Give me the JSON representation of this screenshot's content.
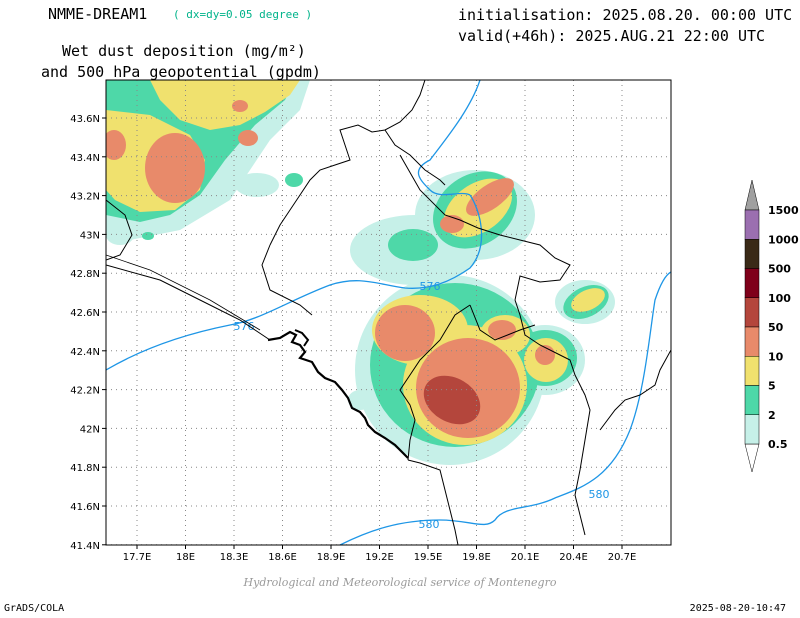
{
  "header": {
    "model": "NMME-DREAM1",
    "resolution": "( dx=dy=0.05 degree )",
    "product_line1": "Wet dust deposition (mg/m²)",
    "product_line2": "and 500 hPa geopotential (gpdm)",
    "init": "initialisation: 2025.08.20. 00:00 UTC",
    "valid": "valid(+46h): 2025.AUG.21 22:00 UTC"
  },
  "map": {
    "lon_labels": [
      "17.7E",
      "18E",
      "18.3E",
      "18.6E",
      "18.9E",
      "19.2E",
      "19.5E",
      "19.8E",
      "20.1E",
      "20.4E",
      "20.7E"
    ],
    "lat_labels": [
      "43.6N",
      "43.4N",
      "43.2N",
      "43N",
      "42.8N",
      "42.6N",
      "42.4N",
      "42.2N",
      "42N",
      "41.8N",
      "41.6N",
      "41.4N"
    ],
    "contour_labels": [
      "576",
      "576",
      "580",
      "580"
    ],
    "contour_color": "#1e96e6"
  },
  "legend": {
    "levels": [
      "1500",
      "1000",
      "500",
      "100",
      "50",
      "10",
      "5",
      "2",
      "0.5"
    ],
    "colors": [
      "#9b6fb0",
      "#3a2a17",
      "#7f001a",
      "#b4463c",
      "#e88a6a",
      "#f0e16e",
      "#4ed8a8",
      "#c6f0e8"
    ]
  },
  "credit": "Hydrological and Meteorological service of Montenegro",
  "footer": {
    "left": "GrADS/COLA",
    "right": "2025-08-20-10:47"
  }
}
